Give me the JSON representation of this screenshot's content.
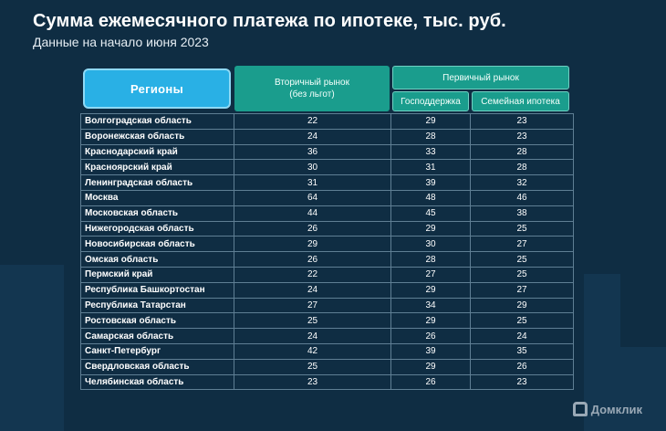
{
  "title": "Сумма ежемесячного платежа по ипотеке, тыс. руб.",
  "subtitle": "Данные на начало июня 2023",
  "header": {
    "regions": "Регионы",
    "secondary_line1": "Вторичный рынок",
    "secondary_line2": "(без льгот)",
    "primary": "Первичный рынок",
    "primary_sub1": "Господдержка",
    "primary_sub2": "Семейная ипотека"
  },
  "rows": [
    {
      "region": "Волгоградская область",
      "secondary": "22",
      "gov": "29",
      "family": "23"
    },
    {
      "region": "Воронежская область",
      "secondary": "24",
      "gov": "28",
      "family": "23"
    },
    {
      "region": "Краснодарский край",
      "secondary": "36",
      "gov": "33",
      "family": "28"
    },
    {
      "region": "Красноярский край",
      "secondary": "30",
      "gov": "31",
      "family": "28"
    },
    {
      "region": "Ленинградская область",
      "secondary": "31",
      "gov": "39",
      "family": "32"
    },
    {
      "region": "Москва",
      "secondary": "64",
      "gov": "48",
      "family": "46"
    },
    {
      "region": "Московская область",
      "secondary": "44",
      "gov": "45",
      "family": "38"
    },
    {
      "region": "Нижегородская область",
      "secondary": "26",
      "gov": "29",
      "family": "25"
    },
    {
      "region": "Новосибирская область",
      "secondary": "29",
      "gov": "30",
      "family": "27"
    },
    {
      "region": "Омская область",
      "secondary": "26",
      "gov": "28",
      "family": "25"
    },
    {
      "region": "Пермский край",
      "secondary": "22",
      "gov": "27",
      "family": "25"
    },
    {
      "region": "Республика Башкортостан",
      "secondary": "24",
      "gov": "29",
      "family": "27"
    },
    {
      "region": "Республика Татарстан",
      "secondary": "27",
      "gov": "34",
      "family": "29"
    },
    {
      "region": "Ростовская область",
      "secondary": "25",
      "gov": "29",
      "family": "25"
    },
    {
      "region": "Самарская область",
      "secondary": "24",
      "gov": "26",
      "family": "24"
    },
    {
      "region": "Санкт-Петербург",
      "secondary": "42",
      "gov": "39",
      "family": "35"
    },
    {
      "region": "Свердловская область",
      "secondary": "25",
      "gov": "29",
      "family": "26"
    },
    {
      "region": "Челябинская область",
      "secondary": "23",
      "gov": "26",
      "family": "23"
    }
  ],
  "brand": "Домклик",
  "brand_icon": "house-icon",
  "colors": {
    "background": "#0f2d43",
    "regions_header": "#29b0e5",
    "market_header": "#1a9d8d",
    "grid": "#5f7f94"
  }
}
